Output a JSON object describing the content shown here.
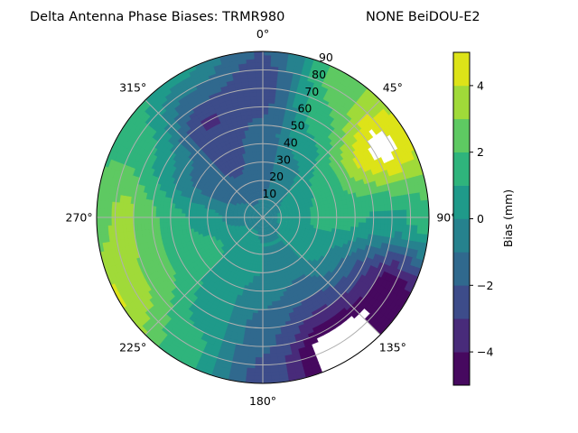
{
  "chart_data": {
    "type": "heatmap",
    "subtype": "polar-filled-contour",
    "title_left": "Delta Antenna Phase Biases: TRMR980",
    "title_right": "NONE BeiDOU-E2",
    "theta_direction": "clockwise",
    "theta_zero": "north",
    "theta_tick_labels": [
      "0°",
      "45°",
      "90°",
      "135°",
      "180°",
      "225°",
      "270°",
      "315°"
    ],
    "theta_ticks": [
      0,
      45,
      90,
      135,
      180,
      225,
      270,
      315
    ],
    "r_tick_labels": [
      "10",
      "20",
      "30",
      "40",
      "50",
      "60",
      "70",
      "80",
      "90"
    ],
    "r_ticks": [
      10,
      20,
      30,
      40,
      50,
      60,
      70,
      80,
      90
    ],
    "rlim": [
      0,
      90
    ],
    "grid": true,
    "colormap": "viridis",
    "levels": [
      -5,
      -4,
      -3,
      -2,
      -1,
      0,
      1,
      2,
      3,
      4,
      5
    ],
    "level_colors": [
      "#46095f",
      "#482b7a",
      "#3d4c8a",
      "#30698e",
      "#26828e",
      "#1f9a8a",
      "#2fb47c",
      "#5ec962",
      "#a0da39",
      "#dde318"
    ],
    "out_of_range_color": "#ffffff",
    "colorbar": {
      "label": "Bias (mm)",
      "range": [
        -5,
        5
      ],
      "tick_labels": [
        "4",
        "2",
        "0",
        "−2",
        "−4"
      ],
      "ticks": [
        4,
        2,
        0,
        -2,
        -4
      ]
    },
    "grid_azimuths_deg": [
      0,
      30,
      60,
      90,
      120,
      150,
      180,
      210,
      240,
      270,
      300,
      330
    ],
    "grid_radii": [
      0,
      15,
      30,
      45,
      60,
      75,
      90
    ],
    "values_mm": [
      [
        -0.5,
        -1.2,
        -1.5,
        -1.6,
        -2.2,
        -2.6,
        -2.0
      ],
      [
        -0.5,
        -0.5,
        -0.3,
        0.5,
        1.5,
        2.2,
        2.6
      ],
      [
        -0.5,
        0.2,
        1.0,
        2.0,
        4.2,
        5.6,
        4.3
      ],
      [
        -0.5,
        0.5,
        1.2,
        1.5,
        0.9,
        0.8,
        1.8
      ],
      [
        -0.5,
        0.3,
        0.8,
        -0.5,
        -2.6,
        -4.6,
        -4.2
      ],
      [
        -0.5,
        0.0,
        -0.5,
        -1.5,
        -3.2,
        -5.6,
        -5.6
      ],
      [
        -0.5,
        0.0,
        0.0,
        -0.8,
        -1.5,
        -2.0,
        -2.5
      ],
      [
        -0.5,
        0.5,
        0.8,
        0.5,
        0.6,
        1.2,
        1.5
      ],
      [
        -0.5,
        0.3,
        1.2,
        1.5,
        2.2,
        3.2,
        4.2
      ],
      [
        -0.5,
        -0.5,
        0.5,
        1.2,
        2.2,
        3.5,
        2.5
      ],
      [
        -0.5,
        -1.0,
        -1.5,
        -1.0,
        0.5,
        1.6,
        1.8
      ],
      [
        -0.5,
        -1.5,
        -2.2,
        -2.6,
        -3.2,
        -1.5,
        0.5
      ]
    ]
  }
}
